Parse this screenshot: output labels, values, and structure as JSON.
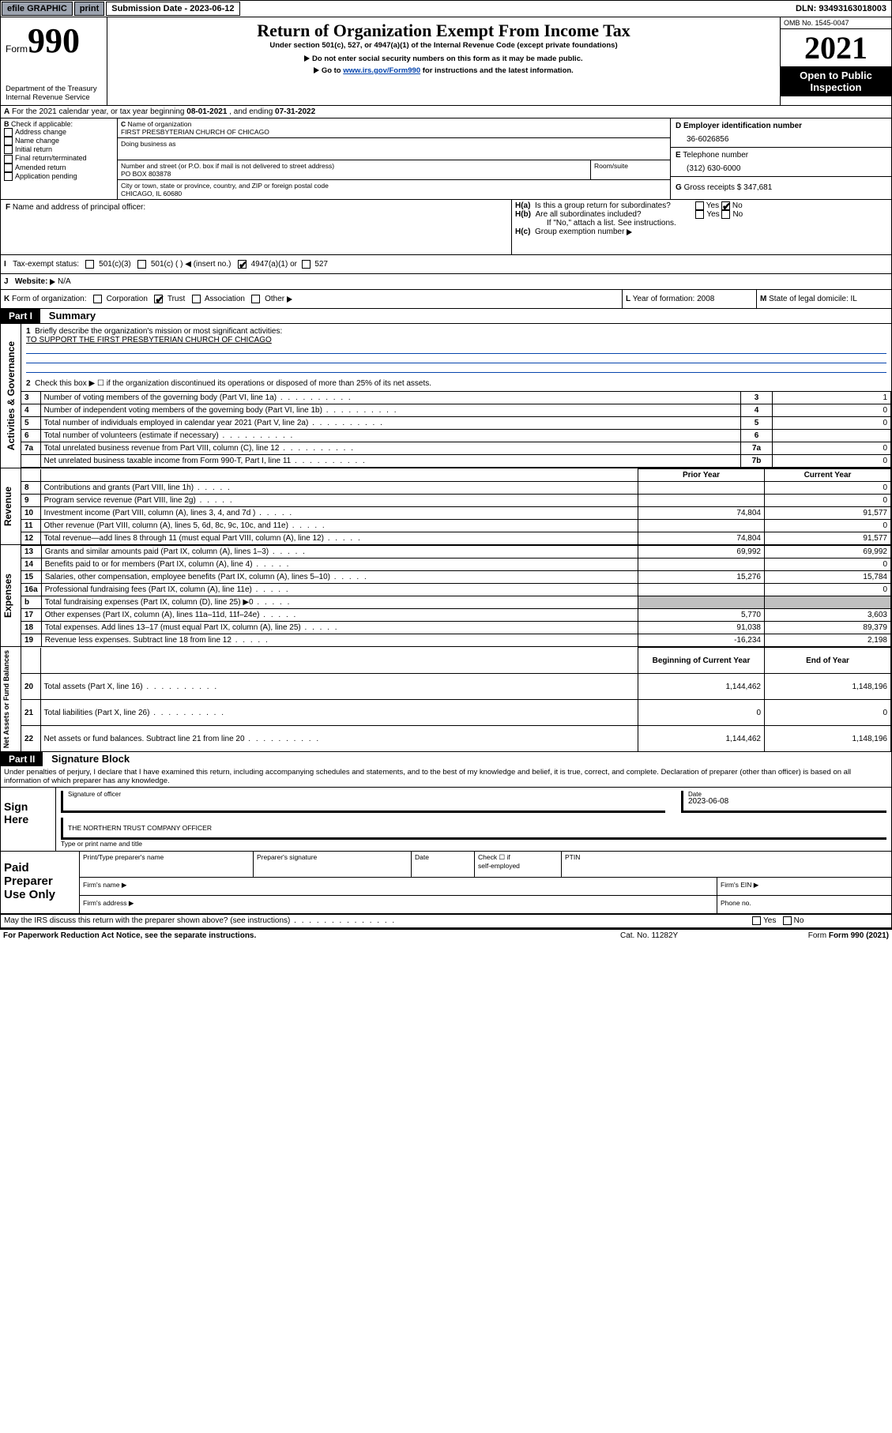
{
  "topbar": {
    "efile": "efile GRAPHIC",
    "print": "print",
    "sub_label": "Submission Date - 2023-06-12",
    "dln": "DLN: 93493163018003"
  },
  "header": {
    "form_word": "Form",
    "form_num": "990",
    "title": "Return of Organization Exempt From Income Tax",
    "subtitle": "Under section 501(c), 527, or 4947(a)(1) of the Internal Revenue Code (except private foundations)",
    "note1": "Do not enter social security numbers on this form as it may be made public.",
    "note2_pre": "Go to ",
    "note2_link": "www.irs.gov/Form990",
    "note2_post": " for instructions and the latest information.",
    "dept": "Department of the Treasury",
    "irs": "Internal Revenue Service",
    "omb": "OMB No. 1545-0047",
    "year": "2021",
    "open": "Open to Public Inspection"
  },
  "A": {
    "text": "For the 2021 calendar year, or tax year beginning ",
    "begin": "08-01-2021",
    "mid": " , and ending ",
    "end": "07-31-2022"
  },
  "B": {
    "label": "Check if applicable:",
    "items": [
      "Address change",
      "Name change",
      "Initial return",
      "Final return/terminated",
      "Amended return",
      "Application pending"
    ]
  },
  "C": {
    "name_lbl": "Name of organization",
    "name": "FIRST PRESBYTERIAN CHURCH OF CHICAGO",
    "dba_lbl": "Doing business as",
    "street_lbl": "Number and street (or P.O. box if mail is not delivered to street address)",
    "room_lbl": "Room/suite",
    "street": "PO BOX 803878",
    "city_lbl": "City or town, state or province, country, and ZIP or foreign postal code",
    "city": "CHICAGO, IL  60680"
  },
  "D": {
    "lbl": "Employer identification number",
    "val": "36-6026856"
  },
  "E": {
    "lbl": "Telephone number",
    "val": "(312) 630-6000"
  },
  "G": {
    "lbl": "Gross receipts $",
    "val": "347,681"
  },
  "F": {
    "lbl": "Name and address of principal officer:"
  },
  "H": {
    "a": "Is this a group return for subordinates?",
    "b": "Are all subordinates included?",
    "b_note": "If \"No,\" attach a list. See instructions.",
    "c": "Group exemption number",
    "yes": "Yes",
    "no": "No"
  },
  "I": {
    "lbl": "Tax-exempt status:",
    "opts": [
      "501(c)(3)",
      "501(c) (  )",
      "(insert no.)",
      "4947(a)(1) or",
      "527"
    ]
  },
  "J": {
    "lbl": "Website:",
    "val": "N/A"
  },
  "K": {
    "lbl": "Form of organization:",
    "opts": [
      "Corporation",
      "Trust",
      "Association",
      "Other"
    ]
  },
  "L": {
    "lbl": "Year of formation:",
    "val": "2008"
  },
  "M": {
    "lbl": "State of legal domicile:",
    "val": "IL"
  },
  "part1": {
    "bar": "Part I",
    "title": "Summary",
    "q1": "Briefly describe the organization's mission or most significant activities:",
    "q1a": "TO SUPPORT THE FIRST PRESBYTERIAN CHURCH OF CHICAGO",
    "q2": "Check this box ▶ ☐  if the organization discontinued its operations or disposed of more than 25% of its net assets.",
    "side_act": "Activities & Governance",
    "side_rev": "Revenue",
    "side_exp": "Expenses",
    "side_net": "Net Assets or Fund Balances",
    "hdr_prior": "Prior Year",
    "hdr_curr": "Current Year",
    "hdr_beg": "Beginning of Current Year",
    "hdr_end": "End of Year",
    "gov_rows": [
      {
        "n": "3",
        "t": "Number of voting members of the governing body (Part VI, line 1a)",
        "box": "3",
        "v": "1"
      },
      {
        "n": "4",
        "t": "Number of independent voting members of the governing body (Part VI, line 1b)",
        "box": "4",
        "v": "0"
      },
      {
        "n": "5",
        "t": "Total number of individuals employed in calendar year 2021 (Part V, line 2a)",
        "box": "5",
        "v": "0"
      },
      {
        "n": "6",
        "t": "Total number of volunteers (estimate if necessary)",
        "box": "6",
        "v": ""
      },
      {
        "n": "7a",
        "t": "Total unrelated business revenue from Part VIII, column (C), line 12",
        "box": "7a",
        "v": "0"
      },
      {
        "n": "",
        "t": "Net unrelated business taxable income from Form 990-T, Part I, line 11",
        "box": "7b",
        "v": "0"
      }
    ],
    "rev_rows": [
      {
        "n": "8",
        "t": "Contributions and grants (Part VIII, line 1h)",
        "p": "",
        "c": "0"
      },
      {
        "n": "9",
        "t": "Program service revenue (Part VIII, line 2g)",
        "p": "",
        "c": "0"
      },
      {
        "n": "10",
        "t": "Investment income (Part VIII, column (A), lines 3, 4, and 7d )",
        "p": "74,804",
        "c": "91,577"
      },
      {
        "n": "11",
        "t": "Other revenue (Part VIII, column (A), lines 5, 6d, 8c, 9c, 10c, and 11e)",
        "p": "",
        "c": "0"
      },
      {
        "n": "12",
        "t": "Total revenue—add lines 8 through 11 (must equal Part VIII, column (A), line 12)",
        "p": "74,804",
        "c": "91,577"
      }
    ],
    "exp_rows": [
      {
        "n": "13",
        "t": "Grants and similar amounts paid (Part IX, column (A), lines 1–3)",
        "p": "69,992",
        "c": "69,992"
      },
      {
        "n": "14",
        "t": "Benefits paid to or for members (Part IX, column (A), line 4)",
        "p": "",
        "c": "0"
      },
      {
        "n": "15",
        "t": "Salaries, other compensation, employee benefits (Part IX, column (A), lines 5–10)",
        "p": "15,276",
        "c": "15,784"
      },
      {
        "n": "16a",
        "t": "Professional fundraising fees (Part IX, column (A), line 11e)",
        "p": "",
        "c": "0"
      },
      {
        "n": "b",
        "t": "Total fundraising expenses (Part IX, column (D), line 25) ▶0",
        "p": "GRAY",
        "c": "GRAY"
      },
      {
        "n": "17",
        "t": "Other expenses (Part IX, column (A), lines 11a–11d, 11f–24e)",
        "p": "5,770",
        "c": "3,603"
      },
      {
        "n": "18",
        "t": "Total expenses. Add lines 13–17 (must equal Part IX, column (A), line 25)",
        "p": "91,038",
        "c": "89,379"
      },
      {
        "n": "19",
        "t": "Revenue less expenses. Subtract line 18 from line 12",
        "p": "-16,234",
        "c": "2,198"
      }
    ],
    "net_rows": [
      {
        "n": "20",
        "t": "Total assets (Part X, line 16)",
        "p": "1,144,462",
        "c": "1,148,196"
      },
      {
        "n": "21",
        "t": "Total liabilities (Part X, line 26)",
        "p": "0",
        "c": "0"
      },
      {
        "n": "22",
        "t": "Net assets or fund balances. Subtract line 21 from line 20",
        "p": "1,144,462",
        "c": "1,148,196"
      }
    ]
  },
  "part2": {
    "bar": "Part II",
    "title": "Signature Block",
    "decl": "Under penalties of perjury, I declare that I have examined this return, including accompanying schedules and statements, and to the best of my knowledge and belief, it is true, correct, and complete. Declaration of preparer (other than officer) is based on all information of which preparer has any knowledge.",
    "sign_here": "Sign Here",
    "sig_officer": "Signature of officer",
    "sig_date": "Date",
    "sig_date_val": "2023-06-08",
    "officer_name": "THE NORTHERN TRUST COMPANY OFFICER",
    "type_name": "Type or print name and title",
    "paid": "Paid Preparer Use Only",
    "prep_name": "Print/Type preparer's name",
    "prep_sig": "Preparer's signature",
    "prep_date": "Date",
    "self_emp": "self-employed",
    "check_if": "Check ☐ if",
    "ptin": "PTIN",
    "firm_name": "Firm's name  ▶",
    "firm_ein": "Firm's EIN ▶",
    "firm_addr": "Firm's address ▶",
    "phone": "Phone no."
  },
  "footer": {
    "may": "May the IRS discuss this return with the preparer shown above? (see instructions)",
    "paperwork": "For Paperwork Reduction Act Notice, see the separate instructions.",
    "cat": "Cat. No. 11282Y",
    "form": "Form 990 (2021)",
    "yes": "Yes",
    "no": "No"
  },
  "colors": {
    "link": "#0645ad",
    "gray": "#c0c0c0",
    "topbtn": "#9ca3af"
  }
}
